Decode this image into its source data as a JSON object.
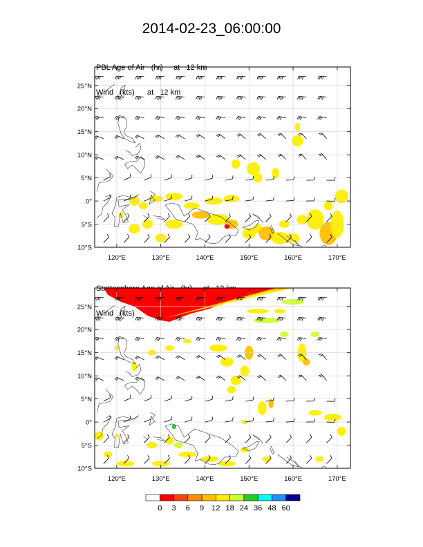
{
  "title": "2014-02-23_06:00:00",
  "panels": [
    {
      "id": "pbl",
      "line1": "PBL Age of Air   (hr)     at   12 km",
      "line2": "Wind   (kts)      at   12 km"
    },
    {
      "id": "strat",
      "line1": "Stratosphere Age of Air   (hr)     at   12 km",
      "line2": "Wind   (kts)      at   12 km"
    }
  ],
  "lat_labels": [
    "25°N",
    "20°N",
    "15°N",
    "10°N",
    "5°N",
    "0°",
    "5°S",
    "10°S"
  ],
  "lon_labels": [
    "120°E",
    "130°E",
    "140°E",
    "150°E",
    "160°E",
    "170°E"
  ],
  "colorbar": {
    "labels": [
      "0",
      "3",
      "6",
      "9",
      "12",
      "18",
      "24",
      "36",
      "48",
      "60"
    ],
    "colors": [
      "#ffffff",
      "#ff0000",
      "#ff4400",
      "#ff8c00",
      "#ffbf00",
      "#ffee00",
      "#ccff33",
      "#22cc22",
      "#00ffff",
      "#1e90ff",
      "#000088"
    ]
  },
  "map": {
    "lon_min": 115,
    "lon_max": 173,
    "lat_min": -10,
    "lat_max": 29,
    "shading_colors": {
      "yellow": "#ffee00",
      "orange": "#ffbf00",
      "red": "#ff0000",
      "green": "#ccff33",
      "darkgreen": "#22cc22"
    }
  }
}
